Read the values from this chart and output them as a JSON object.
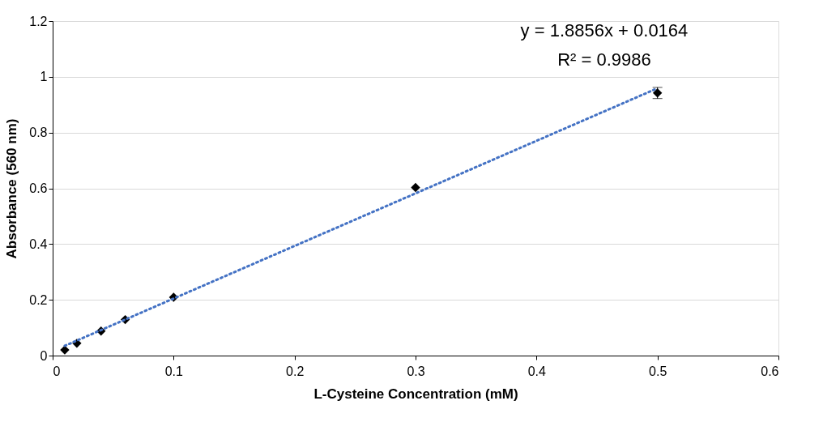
{
  "chart_data": {
    "type": "scatter",
    "xlabel": "L-Cysteine Concentration (mM)",
    "ylabel": "Absorbance (560 nm)",
    "annotations": [
      "y = 1.8856x + 0.0164",
      "R² = 0.9986"
    ],
    "xlim": [
      0,
      0.6
    ],
    "xticks": [
      0,
      0.1,
      0.2,
      0.3,
      0.4,
      0.5,
      0.6
    ],
    "ylim": [
      0,
      1.2
    ],
    "yticks": [
      0,
      0.2,
      0.4,
      0.6,
      0.8,
      1,
      1.2
    ],
    "grid": "y",
    "series": [
      {
        "color": "#000000",
        "marker": "diamond",
        "x": [
          0.01,
          0.02,
          0.04,
          0.06,
          0.1,
          0.3,
          0.5
        ],
        "values": [
          0.02,
          0.044,
          0.088,
          0.129,
          0.209,
          0.603,
          0.942
        ],
        "errors": [
          null,
          null,
          null,
          null,
          null,
          null,
          0.02
        ]
      },
      {
        "type": "line",
        "color": "#4472c4",
        "line_style": "dotted",
        "x": [
          0.01,
          0.5
        ],
        "values": [
          0.035,
          0.959
        ]
      }
    ]
  }
}
